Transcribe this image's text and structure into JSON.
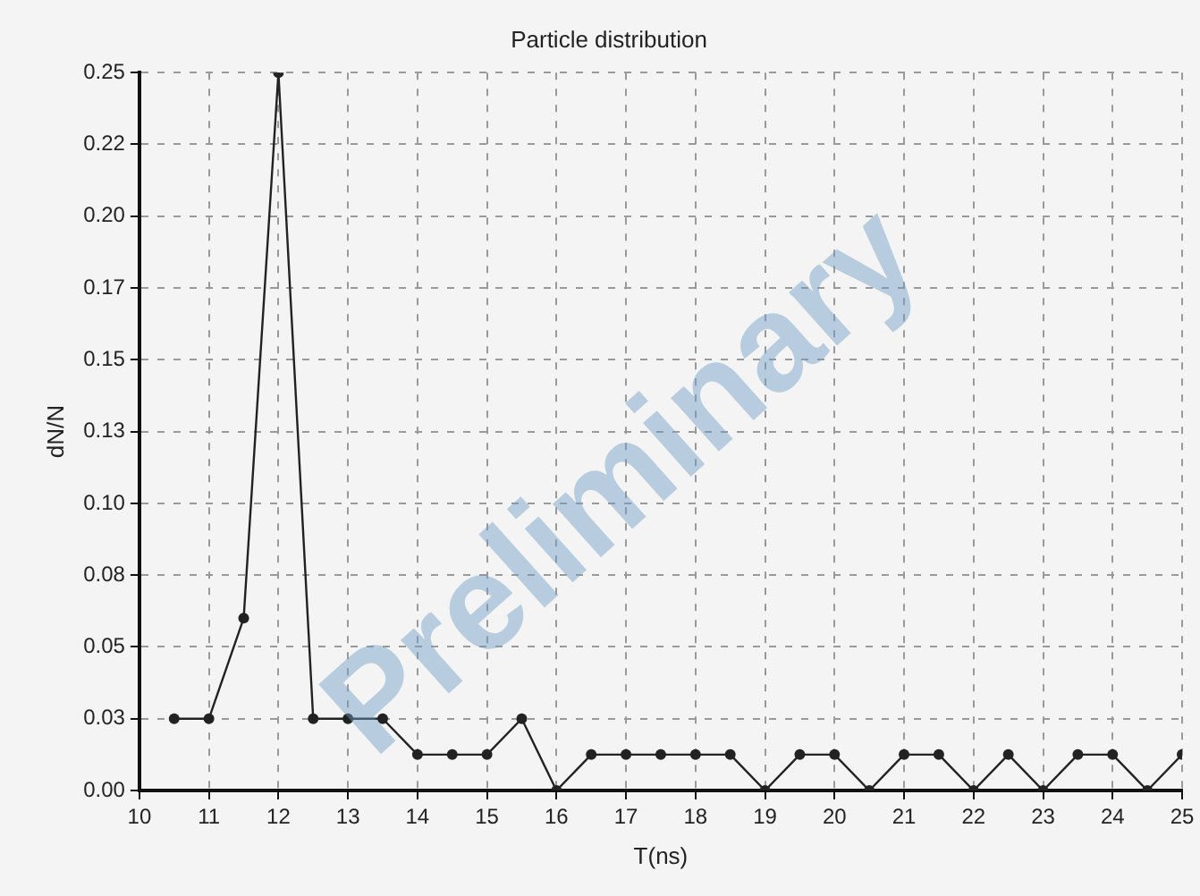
{
  "chart_data": {
    "type": "line",
    "title": "Particle distribution",
    "xlabel": "T(ns)",
    "ylabel": "dN/N",
    "x": [
      10.5,
      11,
      11.5,
      12,
      12.5,
      13,
      13.5,
      14,
      14.5,
      15,
      15.5,
      16,
      16.5,
      17,
      17.5,
      18,
      18.5,
      19,
      19.5,
      20,
      20.5,
      21,
      21.5,
      22,
      22.5,
      23,
      23.5,
      24,
      24.5,
      25
    ],
    "series": [
      {
        "color": "#222222",
        "values": [
          0.025,
          0.025,
          0.06,
          0.25,
          0.025,
          0.025,
          0.025,
          0.0125,
          0.0125,
          0.0125,
          0.025,
          0,
          0.0125,
          0.0125,
          0.0125,
          0.0125,
          0.0125,
          0,
          0.0125,
          0.0125,
          0,
          0.0125,
          0.0125,
          0,
          0.0125,
          0,
          0.0125,
          0.0125,
          0,
          0.0125
        ]
      }
    ],
    "xlim": [
      10,
      25
    ],
    "xticks": [
      10,
      11,
      12,
      13,
      14,
      15,
      16,
      17,
      18,
      19,
      20,
      21,
      22,
      23,
      24,
      25
    ],
    "ylim": [
      0,
      0.25
    ],
    "yticks": [
      {
        "value": 0,
        "label": "0.00"
      },
      {
        "value": 0.025,
        "label": "0.03"
      },
      {
        "value": 0.05,
        "label": "0.05"
      },
      {
        "value": 0.075,
        "label": "0.08"
      },
      {
        "value": 0.1,
        "label": "0.10"
      },
      {
        "value": 0.125,
        "label": "0.13"
      },
      {
        "value": 0.15,
        "label": "0.15"
      },
      {
        "value": 0.175,
        "label": "0.17"
      },
      {
        "value": 0.2,
        "label": "0.20"
      },
      {
        "value": 0.225,
        "label": "0.22"
      },
      {
        "value": 0.25,
        "label": "0.25"
      }
    ],
    "grid": true,
    "marker": "circle",
    "line_style": "solid",
    "legend": false,
    "annotations": [
      "Preliminary"
    ]
  }
}
